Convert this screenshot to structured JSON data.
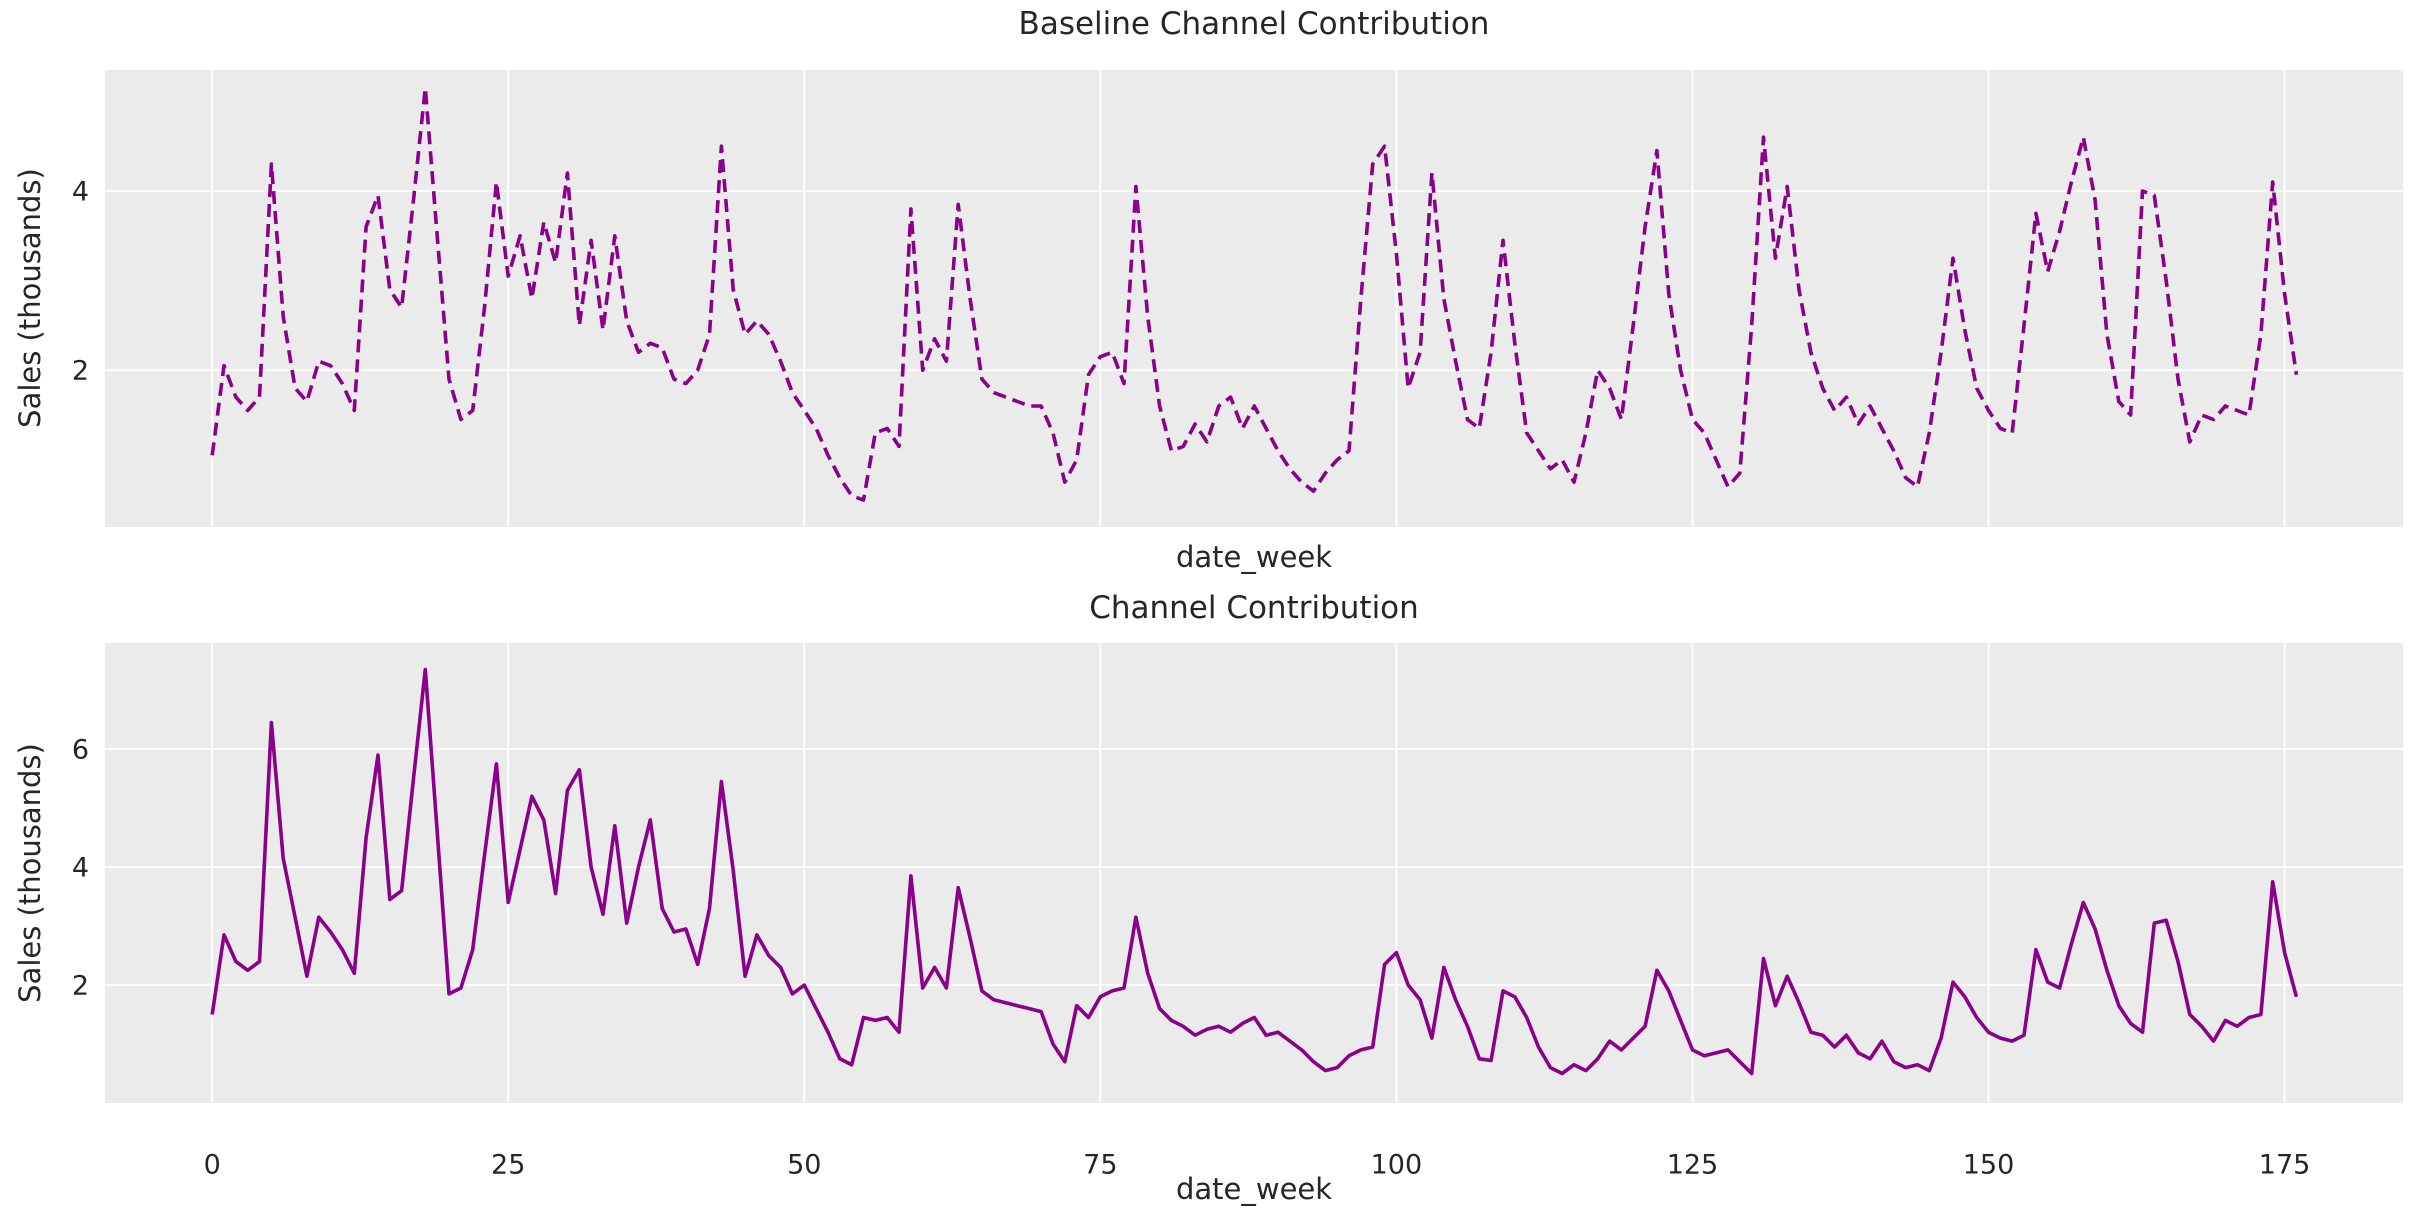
{
  "styles": {
    "figure_bg": "#ffffff",
    "plot_bg": "#ebebeb",
    "grid_color": "#ffffff",
    "text_color": "#262626",
    "line_color": "#8B008B"
  },
  "chart_data": [
    {
      "type": "line",
      "title": "Baseline Channel Contribution",
      "xlabel": "date_week",
      "ylabel": "Sales (thousands)",
      "legend": null,
      "grid": true,
      "line_style": "dashed",
      "line_color": "#8B008B",
      "x_start": 0,
      "x_step": 1,
      "xlim": [
        -9.05,
        185.0
      ],
      "ylim": [
        0.25,
        5.35
      ],
      "yticks": [
        2,
        4
      ],
      "xticks": [
        0,
        25,
        50,
        75,
        100,
        125,
        150,
        175
      ],
      "show_xtick_labels": false,
      "values": [
        1.05,
        2.05,
        1.7,
        1.55,
        1.7,
        4.3,
        2.6,
        1.8,
        1.65,
        2.1,
        2.05,
        1.85,
        1.55,
        3.6,
        3.95,
        2.9,
        2.7,
        3.9,
        5.15,
        3.5,
        1.9,
        1.45,
        1.55,
        2.7,
        4.1,
        3.05,
        3.5,
        2.8,
        3.65,
        3.2,
        4.2,
        2.5,
        3.45,
        2.45,
        3.5,
        2.55,
        2.2,
        2.3,
        2.25,
        1.9,
        1.85,
        2.0,
        2.4,
        4.5,
        2.9,
        2.4,
        2.55,
        2.4,
        2.1,
        1.75,
        1.55,
        1.35,
        1.05,
        0.8,
        0.6,
        0.55,
        1.3,
        1.35,
        1.15,
        3.8,
        2.0,
        2.35,
        2.1,
        3.85,
        2.8,
        1.9,
        1.75,
        1.7,
        1.65,
        1.6,
        1.6,
        1.3,
        0.75,
        1.0,
        1.95,
        2.15,
        2.2,
        1.85,
        4.05,
        2.6,
        1.6,
        1.1,
        1.15,
        1.4,
        1.2,
        1.6,
        1.7,
        1.35,
        1.6,
        1.35,
        1.1,
        0.9,
        0.75,
        0.65,
        0.85,
        1.0,
        1.1,
        2.8,
        4.3,
        4.5,
        3.3,
        1.8,
        2.2,
        4.2,
        2.8,
        2.1,
        1.45,
        1.35,
        2.2,
        3.45,
        2.3,
        1.3,
        1.1,
        0.9,
        1.0,
        0.75,
        1.3,
        2.0,
        1.8,
        1.45,
        2.5,
        3.6,
        4.45,
        2.85,
        2.0,
        1.45,
        1.3,
        1.0,
        0.7,
        0.85,
        2.5,
        4.6,
        3.25,
        4.05,
        2.9,
        2.2,
        1.8,
        1.55,
        1.7,
        1.4,
        1.6,
        1.35,
        1.1,
        0.8,
        0.7,
        1.3,
        2.2,
        3.25,
        2.45,
        1.8,
        1.55,
        1.35,
        1.3,
        2.5,
        3.75,
        3.1,
        3.55,
        4.1,
        4.6,
        3.9,
        2.4,
        1.65,
        1.5,
        4.0,
        3.95,
        3.0,
        1.9,
        1.2,
        1.5,
        1.45,
        1.6,
        1.55,
        1.5,
        2.4,
        4.1,
        2.85,
        1.95
      ]
    },
    {
      "type": "line",
      "title": "Channel Contribution",
      "xlabel": "date_week",
      "ylabel": "Sales (thousands)",
      "legend": null,
      "grid": true,
      "line_style": "solid",
      "line_color": "#8B008B",
      "x_start": 0,
      "x_step": 1,
      "xlim": [
        -9.05,
        185.0
      ],
      "ylim": [
        0.0,
        7.8
      ],
      "yticks": [
        2,
        4,
        6
      ],
      "xticks": [
        0,
        25,
        50,
        75,
        100,
        125,
        150,
        175
      ],
      "show_xtick_labels": true,
      "values": [
        1.5,
        2.85,
        2.4,
        2.25,
        2.4,
        6.45,
        4.15,
        3.15,
        2.15,
        3.15,
        2.9,
        2.6,
        2.2,
        4.5,
        5.9,
        3.45,
        3.6,
        5.5,
        7.35,
        4.6,
        1.85,
        1.95,
        2.6,
        4.2,
        5.75,
        3.4,
        4.3,
        5.2,
        4.8,
        3.55,
        5.3,
        5.65,
        4.0,
        3.2,
        4.7,
        3.05,
        4.0,
        4.8,
        3.3,
        2.9,
        2.95,
        2.35,
        3.3,
        5.45,
        3.95,
        2.15,
        2.85,
        2.5,
        2.3,
        1.85,
        2.0,
        1.6,
        1.2,
        0.75,
        0.65,
        1.45,
        1.4,
        1.45,
        1.2,
        3.85,
        1.95,
        2.3,
        1.95,
        3.65,
        2.8,
        1.9,
        1.75,
        1.7,
        1.65,
        1.6,
        1.55,
        1.0,
        0.7,
        1.65,
        1.45,
        1.8,
        1.9,
        1.95,
        3.15,
        2.2,
        1.6,
        1.4,
        1.3,
        1.15,
        1.25,
        1.3,
        1.2,
        1.35,
        1.45,
        1.15,
        1.2,
        1.05,
        0.9,
        0.7,
        0.55,
        0.6,
        0.8,
        0.9,
        0.95,
        2.35,
        2.55,
        2.0,
        1.75,
        1.1,
        2.3,
        1.75,
        1.3,
        0.75,
        0.72,
        1.9,
        1.8,
        1.45,
        0.95,
        0.6,
        0.5,
        0.65,
        0.55,
        0.75,
        1.05,
        0.9,
        1.1,
        1.3,
        2.25,
        1.9,
        1.4,
        0.9,
        0.8,
        0.85,
        0.9,
        0.7,
        0.5,
        2.45,
        1.65,
        2.15,
        1.7,
        1.2,
        1.15,
        0.95,
        1.15,
        0.85,
        0.75,
        1.05,
        0.7,
        0.6,
        0.65,
        0.55,
        1.1,
        2.05,
        1.8,
        1.45,
        1.2,
        1.1,
        1.05,
        1.15,
        2.6,
        2.05,
        1.95,
        2.7,
        3.4,
        2.95,
        2.25,
        1.65,
        1.35,
        1.2,
        3.05,
        3.1,
        2.4,
        1.5,
        1.3,
        1.05,
        1.4,
        1.3,
        1.45,
        1.5,
        3.75,
        2.55,
        1.8
      ]
    }
  ]
}
